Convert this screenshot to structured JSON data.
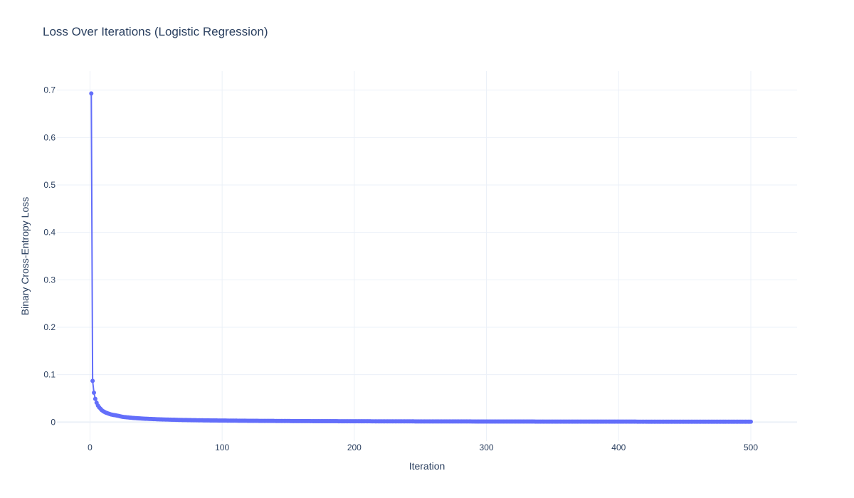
{
  "chart_data": {
    "type": "line",
    "title": "Loss Over Iterations (Logistic Regression)",
    "xlabel": "Iteration",
    "ylabel": "Binary Cross-Entropy Loss",
    "xlim": [
      -25,
      535
    ],
    "ylim": [
      -0.04,
      0.74
    ],
    "xticks": [
      0,
      100,
      200,
      300,
      400,
      500
    ],
    "yticks": [
      0,
      0.1,
      0.2,
      0.3,
      0.4,
      0.5,
      0.6,
      0.7
    ],
    "ytick_labels": [
      "0",
      "0.1",
      "0.2",
      "0.3",
      "0.4",
      "0.5",
      "0.6",
      "0.7"
    ],
    "markers": true,
    "grid": true,
    "line_color": "#636efa",
    "series": [
      {
        "x": [
          1,
          2,
          3,
          4,
          5,
          6,
          7,
          8,
          9,
          10,
          12,
          14,
          16,
          18,
          20,
          25,
          30,
          35,
          40,
          50,
          60,
          70,
          80,
          90,
          100,
          125,
          150,
          175,
          200,
          250,
          300,
          350,
          400,
          450,
          500
        ],
        "y": [
          0.693,
          0.087,
          0.062,
          0.049,
          0.041,
          0.035,
          0.031,
          0.028,
          0.025,
          0.023,
          0.02,
          0.018,
          0.016,
          0.015,
          0.014,
          0.011,
          0.0095,
          0.0083,
          0.0074,
          0.0061,
          0.0052,
          0.0045,
          0.004,
          0.0036,
          0.0033,
          0.0027,
          0.0023,
          0.002,
          0.0018,
          0.0015,
          0.0013,
          0.0011,
          0.001,
          0.0009,
          0.0008
        ]
      }
    ]
  }
}
